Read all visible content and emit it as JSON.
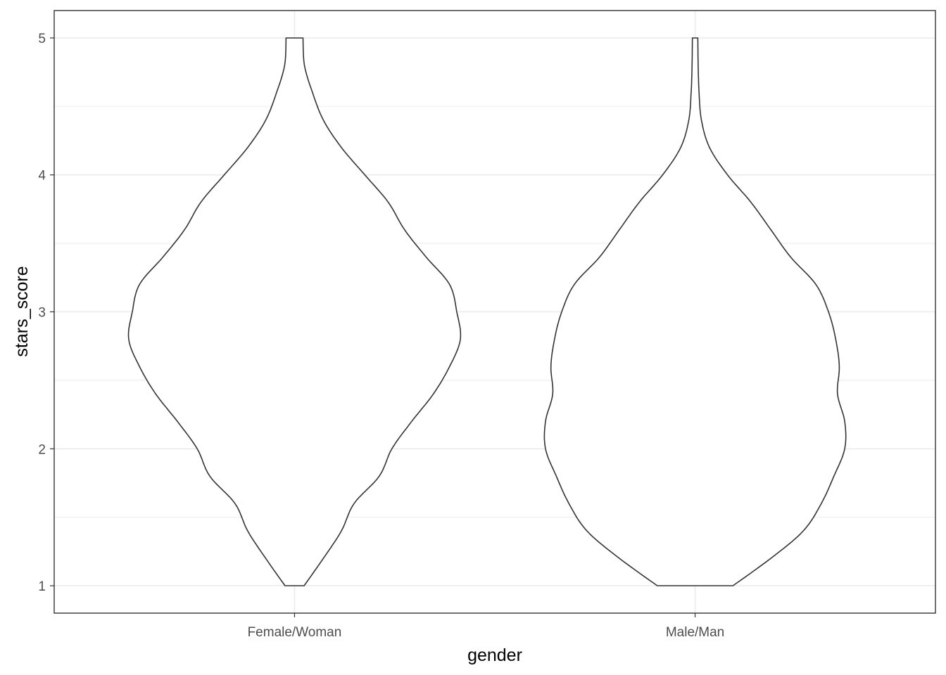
{
  "chart_data": {
    "type": "violin",
    "title": "",
    "xlabel": "gender",
    "ylabel": "stars_score",
    "categories": [
      "Female/Woman",
      "Male/Man"
    ],
    "ylim": [
      0.8,
      5.2
    ],
    "yticks": [
      1,
      2,
      3,
      4,
      5
    ],
    "grid": true,
    "theme": "bw",
    "outline_color": "#333333",
    "fill_color": "#ffffff",
    "series": [
      {
        "category": "Female/Woman",
        "min": 1,
        "max": 5,
        "profile": [
          [
            1.0,
            0.053
          ],
          [
            1.2,
            0.16
          ],
          [
            1.4,
            0.26
          ],
          [
            1.6,
            0.33
          ],
          [
            1.8,
            0.47
          ],
          [
            2.0,
            0.54
          ],
          [
            2.2,
            0.65
          ],
          [
            2.4,
            0.77
          ],
          [
            2.6,
            0.86
          ],
          [
            2.8,
            0.92
          ],
          [
            3.0,
            0.9
          ],
          [
            3.2,
            0.86
          ],
          [
            3.4,
            0.73
          ],
          [
            3.6,
            0.61
          ],
          [
            3.8,
            0.52
          ],
          [
            4.0,
            0.39
          ],
          [
            4.2,
            0.26
          ],
          [
            4.4,
            0.16
          ],
          [
            4.6,
            0.1
          ],
          [
            4.8,
            0.055
          ],
          [
            5.0,
            0.047
          ]
        ]
      },
      {
        "category": "Male/Man",
        "min": 1,
        "max": 5,
        "profile": [
          [
            1.0,
            0.21
          ],
          [
            1.2,
            0.42
          ],
          [
            1.4,
            0.6
          ],
          [
            1.6,
            0.7
          ],
          [
            1.8,
            0.77
          ],
          [
            2.0,
            0.83
          ],
          [
            2.2,
            0.83
          ],
          [
            2.4,
            0.79
          ],
          [
            2.6,
            0.8
          ],
          [
            2.8,
            0.78
          ],
          [
            3.0,
            0.74
          ],
          [
            3.2,
            0.67
          ],
          [
            3.4,
            0.53
          ],
          [
            3.6,
            0.42
          ],
          [
            3.8,
            0.31
          ],
          [
            4.0,
            0.18
          ],
          [
            4.2,
            0.08
          ],
          [
            4.4,
            0.035
          ],
          [
            4.6,
            0.022
          ],
          [
            4.8,
            0.017
          ],
          [
            5.0,
            0.015
          ]
        ]
      }
    ]
  }
}
